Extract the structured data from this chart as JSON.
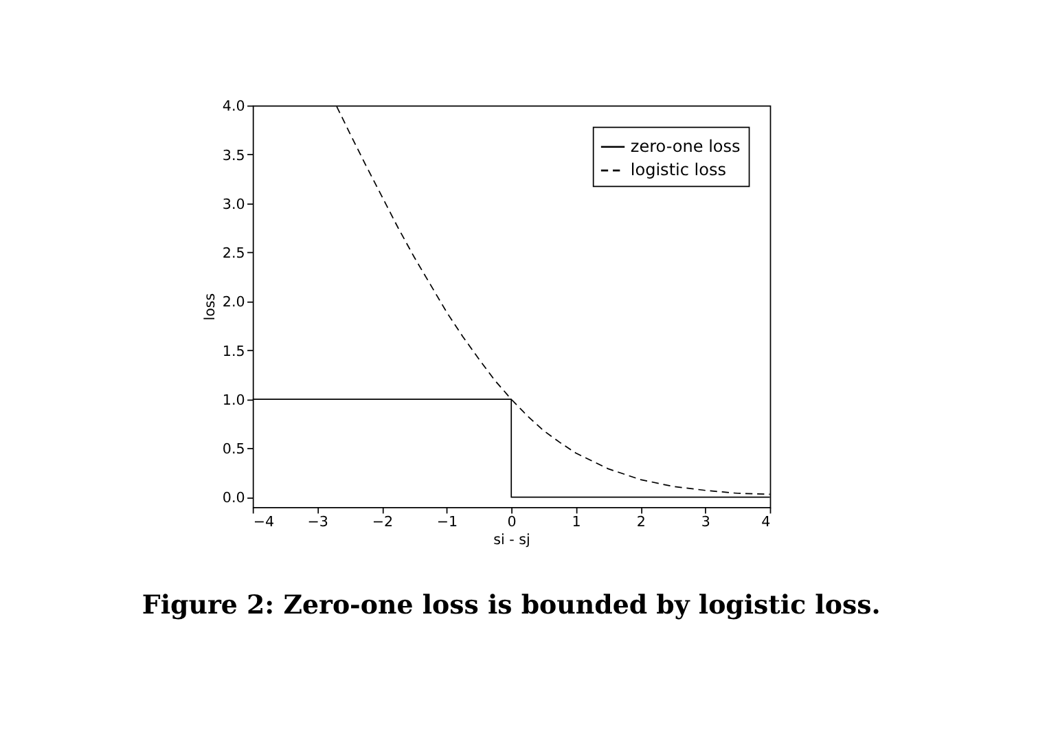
{
  "chart_data": {
    "type": "line",
    "xlabel": "si - sj",
    "ylabel": "loss",
    "annotations": [
      "Figure 2: Zero-one loss is bounded by logistic loss."
    ],
    "series": [
      {
        "name": "zero-one loss",
        "color": "#000000",
        "line_style": "solid",
        "x": [
          -4,
          0,
          0,
          4
        ],
        "values": [
          1,
          1,
          0,
          0
        ]
      },
      {
        "name": "logistic loss",
        "color": "#000000",
        "line_style": "dashed",
        "x": [
          -2.7,
          -2.5,
          -2.25,
          -2.0,
          -1.75,
          -1.5,
          -1.25,
          -1.0,
          -0.75,
          -0.5,
          -0.25,
          0,
          0.25,
          0.5,
          0.75,
          1.0,
          1.5,
          2.0,
          2.5,
          3.0,
          3.5,
          4.0
        ],
        "values": [
          3.99,
          3.72,
          3.39,
          3.07,
          2.75,
          2.45,
          2.17,
          1.89,
          1.64,
          1.41,
          1.19,
          1.0,
          0.83,
          0.68,
          0.56,
          0.45,
          0.29,
          0.18,
          0.11,
          0.07,
          0.04,
          0.03
        ]
      }
    ],
    "xlim": [
      -4,
      4
    ],
    "xticks": [
      {
        "value": -4,
        "label": "−4"
      },
      {
        "value": -3,
        "label": "−3"
      },
      {
        "value": -2,
        "label": "−2"
      },
      {
        "value": -1,
        "label": "−1"
      },
      0,
      1,
      2,
      3,
      4
    ],
    "ylim": [
      -0.1,
      4
    ],
    "yticks": [
      {
        "value": 0,
        "label": "0.0"
      },
      {
        "value": 0.5,
        "label": "0.5"
      },
      {
        "value": 1,
        "label": "1.0"
      },
      {
        "value": 1.5,
        "label": "1.5"
      },
      {
        "value": 2,
        "label": "2.0"
      },
      {
        "value": 2.5,
        "label": "2.5"
      },
      {
        "value": 3,
        "label": "3.0"
      },
      {
        "value": 3.5,
        "label": "3.5"
      },
      {
        "value": 4,
        "label": "4.0"
      }
    ],
    "legend": "top right",
    "grid": false
  }
}
